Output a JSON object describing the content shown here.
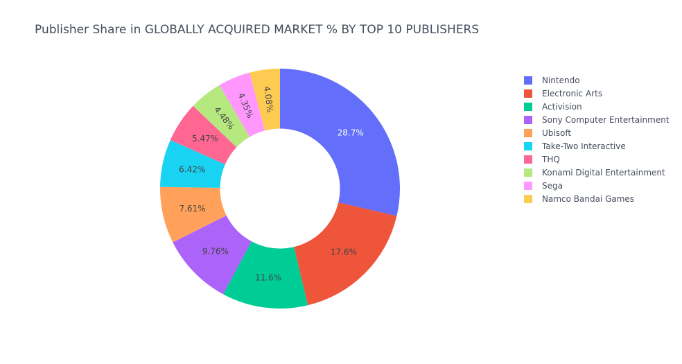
{
  "chart_data": {
    "type": "pie",
    "title": "Publisher Share in GLOBALLY ACQUIRED MARKET % BY TOP 10 PUBLISHERS",
    "hole": 0.5,
    "direction": "clockwise",
    "start": "top",
    "legend": "right",
    "slices": [
      {
        "name": "Nintendo",
        "value": 28.7,
        "label": "28.7%",
        "color": "#636efa",
        "text_color": "#ffffff"
      },
      {
        "name": "Electronic Arts",
        "value": 17.6,
        "label": "17.6%",
        "color": "#ef553b",
        "text_color": "#444444"
      },
      {
        "name": "Activision",
        "value": 11.6,
        "label": "11.6%",
        "color": "#00cc96",
        "text_color": "#444444"
      },
      {
        "name": "Sony Computer Entertainment",
        "value": 9.76,
        "label": "9.76%",
        "color": "#ab63fa",
        "text_color": "#444444"
      },
      {
        "name": "Ubisoft",
        "value": 7.61,
        "label": "7.61%",
        "color": "#ffa15a",
        "text_color": "#444444"
      },
      {
        "name": "Take-Two Interactive",
        "value": 6.42,
        "label": "6.42%",
        "color": "#19d3f3",
        "text_color": "#444444"
      },
      {
        "name": "THQ",
        "value": 5.47,
        "label": "5.47%",
        "color": "#ff6692",
        "text_color": "#444444"
      },
      {
        "name": "Konami Digital Entertainment",
        "value": 4.48,
        "label": "4.48%",
        "color": "#b6e880",
        "text_color": "#444444"
      },
      {
        "name": "Sega",
        "value": 4.35,
        "label": "4.35%",
        "color": "#ff97ff",
        "text_color": "#444444"
      },
      {
        "name": "Namco Bandai Games",
        "value": 4.08,
        "label": "4.08%",
        "color": "#fecb52",
        "text_color": "#444444"
      }
    ]
  }
}
